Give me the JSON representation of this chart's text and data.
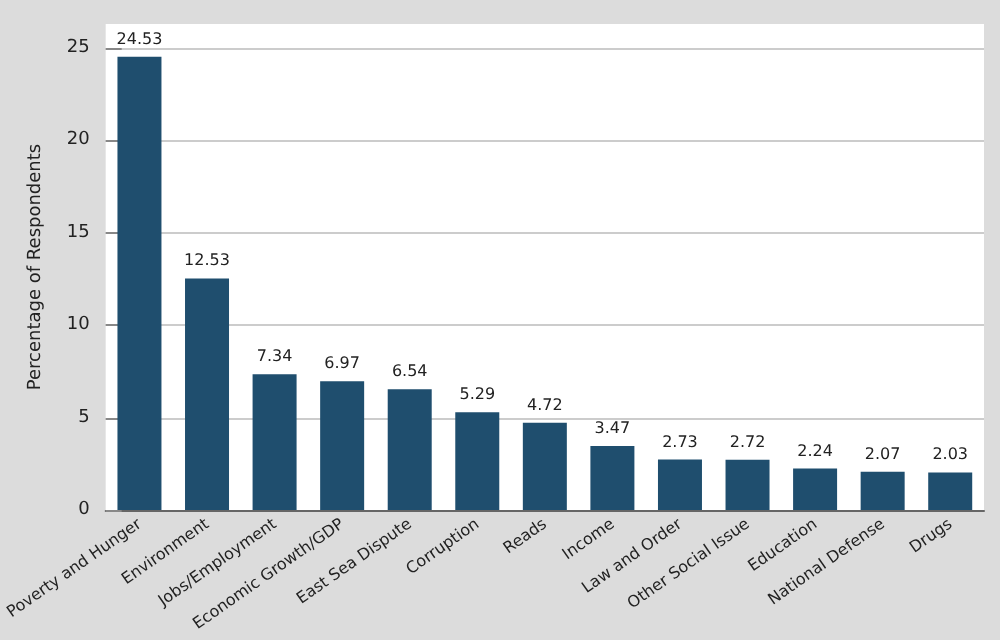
{
  "chart_data": {
    "type": "bar",
    "ylabel": "Percentage of Respondents",
    "categories": [
      "Poverty and Hunger",
      "Environment",
      "Jobs/Employment",
      "Economic Growth/GDP",
      "East Sea Dispute",
      "Corruption",
      "Reads",
      "Income",
      "Law and Order",
      "Other Social Issue",
      "Education",
      "National Defense",
      "Drugs"
    ],
    "values": [
      24.53,
      12.53,
      7.34,
      6.97,
      6.54,
      5.29,
      4.72,
      3.47,
      2.73,
      2.72,
      2.24,
      2.07,
      2.03
    ],
    "color": "#1f4e6e",
    "ylim": [
      0,
      26.3
    ],
    "yticks": [
      0,
      5,
      10,
      15,
      20,
      25
    ],
    "grid": "y",
    "data_labels": true
  }
}
